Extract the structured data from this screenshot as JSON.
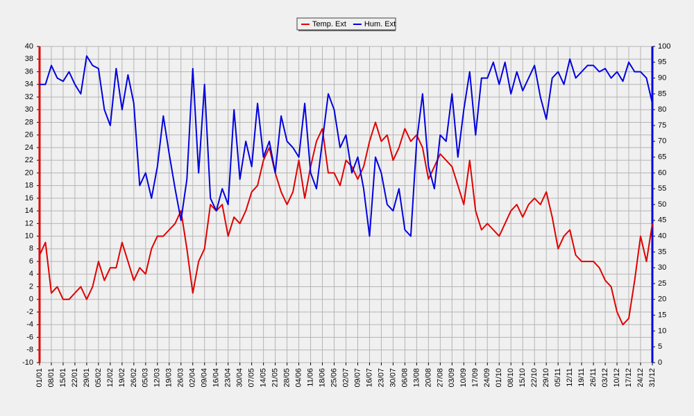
{
  "chart_data": {
    "type": "line",
    "categories": [
      "01/01",
      null,
      "08/01",
      null,
      "15/01",
      null,
      "22/01",
      null,
      "29/01",
      null,
      "05/02",
      null,
      "12/02",
      null,
      "19/02",
      null,
      "26/02",
      null,
      "05/03",
      null,
      "12/03",
      null,
      "19/03",
      null,
      "26/03",
      null,
      "02/04",
      null,
      "09/04",
      null,
      "16/04",
      null,
      "23/04",
      null,
      "30/04",
      null,
      "07/05",
      null,
      "14/05",
      null,
      "21/05",
      null,
      "28/05",
      null,
      "04/06",
      null,
      "11/06",
      null,
      "18/06",
      null,
      "25/06",
      null,
      "02/07",
      null,
      "09/07",
      null,
      "16/07",
      null,
      "23/07",
      null,
      "30/07",
      null,
      "06/08",
      null,
      "13/08",
      null,
      "20/08",
      null,
      "27/08",
      null,
      "03/09",
      null,
      "10/09",
      null,
      "17/09",
      null,
      "24/09",
      null,
      "01/10",
      null,
      "08/10",
      null,
      "15/10",
      null,
      "22/10",
      null,
      "29/10",
      null,
      "05/11",
      null,
      "12/11",
      null,
      "19/11",
      null,
      "26/11",
      null,
      "03/12",
      null,
      "10/12",
      null,
      "17/12",
      null,
      "24/12",
      null,
      "31/12"
    ],
    "series": [
      {
        "name": "Temp. Ext",
        "color": "#e00000",
        "axis": "y",
        "values": [
          7,
          9,
          1,
          2,
          0,
          0,
          1,
          2,
          0,
          2,
          6,
          3,
          5,
          5,
          9,
          6,
          3,
          5,
          4,
          8,
          10,
          10,
          11,
          12,
          14,
          8,
          1,
          6,
          8,
          15,
          14,
          15,
          10,
          13,
          12,
          14,
          17,
          18,
          22,
          24,
          20,
          17,
          15,
          17,
          22,
          16,
          21,
          25,
          27,
          20,
          20,
          18,
          22,
          21,
          19,
          21,
          25,
          28,
          25,
          26,
          22,
          24,
          27,
          25,
          26,
          24,
          19,
          21,
          23,
          22,
          21,
          18,
          15,
          22,
          14,
          11,
          12,
          11,
          10,
          12,
          14,
          15,
          13,
          15,
          16,
          15,
          17,
          13,
          8,
          10,
          11,
          7,
          6,
          6,
          6,
          5,
          3,
          2,
          -2,
          -4,
          -3,
          3,
          10,
          6,
          12
        ]
      },
      {
        "name": "Hum. Ext",
        "color": "#0000e0",
        "axis": "y2",
        "values": [
          88,
          88,
          94,
          90,
          89,
          92,
          88,
          85,
          97,
          94,
          93,
          80,
          75,
          93,
          80,
          91,
          82,
          56,
          60,
          52,
          62,
          78,
          66,
          55,
          45,
          58,
          93,
          60,
          88,
          52,
          48,
          55,
          50,
          80,
          58,
          70,
          62,
          82,
          65,
          70,
          60,
          78,
          70,
          68,
          65,
          82,
          60,
          55,
          70,
          85,
          80,
          68,
          72,
          60,
          65,
          55,
          40,
          65,
          60,
          50,
          48,
          55,
          42,
          40,
          70,
          85,
          62,
          55,
          72,
          70,
          85,
          65,
          80,
          92,
          72,
          90,
          90,
          95,
          88,
          95,
          85,
          92,
          86,
          90,
          94,
          84,
          77,
          90,
          92,
          88,
          96,
          90,
          92,
          94,
          94,
          92,
          93,
          90,
          92,
          89,
          95,
          92,
          92,
          90,
          82
        ]
      }
    ],
    "ylim": [
      -10,
      40
    ],
    "yticks": [
      -10,
      -8,
      -6,
      -4,
      -2,
      0,
      2,
      4,
      6,
      8,
      10,
      12,
      14,
      16,
      18,
      20,
      22,
      24,
      26,
      28,
      30,
      32,
      34,
      36,
      38,
      40
    ],
    "y2lim": [
      0,
      100
    ],
    "y2ticks": [
      0,
      5,
      10,
      15,
      20,
      25,
      30,
      35,
      40,
      45,
      50,
      55,
      60,
      65,
      70,
      75,
      80,
      85,
      90,
      95,
      100
    ],
    "grid": true,
    "legend": "top"
  }
}
